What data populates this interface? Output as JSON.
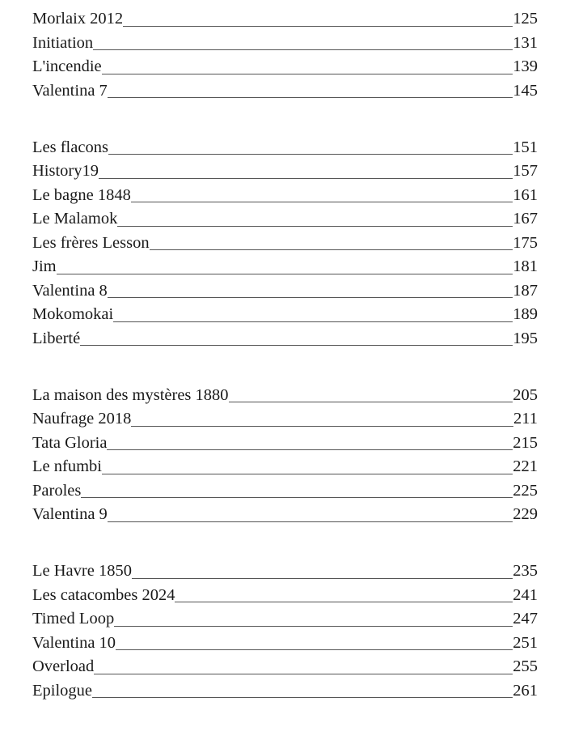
{
  "toc": {
    "groups": [
      [
        {
          "title": "Morlaix 2012",
          "page": "125"
        },
        {
          "title": "Initiation",
          "page": "131"
        },
        {
          "title": "L'incendie",
          "page": "139"
        },
        {
          "title": "Valentina 7",
          "page": "145"
        }
      ],
      [
        {
          "title": "Les flacons",
          "page": "151"
        },
        {
          "title": "History19",
          "page": "157"
        },
        {
          "title": "Le bagne 1848",
          "page": "161"
        },
        {
          "title": "Le Malamok",
          "page": "167"
        },
        {
          "title": "Les frères Lesson",
          "page": "175"
        },
        {
          "title": "Jim",
          "page": "181"
        },
        {
          "title": "Valentina 8",
          "page": "187"
        },
        {
          "title": "Mokomokai",
          "page": "189"
        },
        {
          "title": "Liberté",
          "page": "195"
        }
      ],
      [
        {
          "title": "La maison des mystères 1880",
          "page": "205"
        },
        {
          "title": "Naufrage 2018",
          "page": "211"
        },
        {
          "title": "Tata Gloria",
          "page": "215"
        },
        {
          "title": "Le nfumbi",
          "page": "221"
        },
        {
          "title": "Paroles",
          "page": "225"
        },
        {
          "title": "Valentina 9",
          "page": "229"
        }
      ],
      [
        {
          "title": "Le Havre 1850",
          "page": "235"
        },
        {
          "title": "Les catacombes 2024",
          "page": "241"
        },
        {
          "title": "Timed Loop",
          "page": "247"
        },
        {
          "title": "Valentina 10",
          "page": "251"
        },
        {
          "title": "Overload",
          "page": "255"
        },
        {
          "title": "Epilogue",
          "page": "261"
        }
      ]
    ]
  }
}
